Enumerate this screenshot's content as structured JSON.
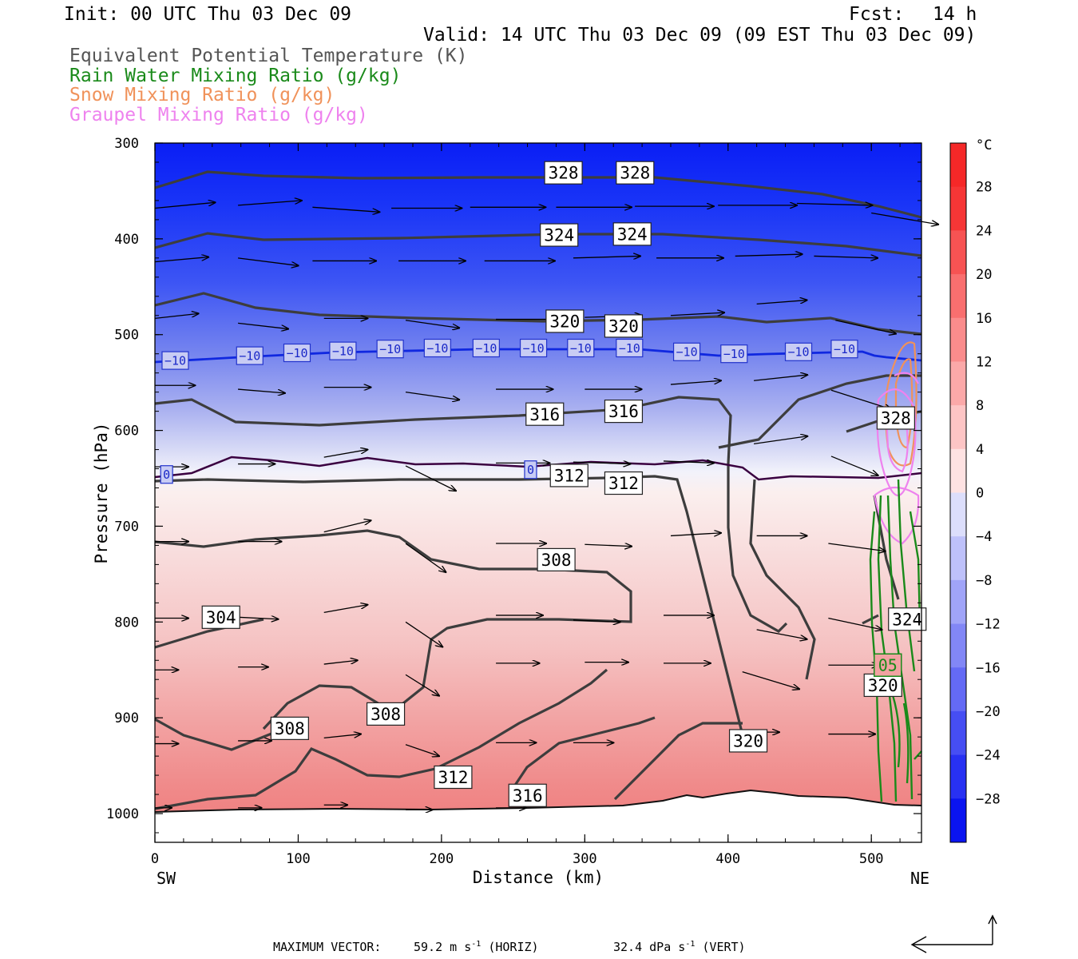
{
  "header": {
    "init": "Init: 00 UTC Thu 03 Dec 09",
    "fcst_label": "Fcst:",
    "fcst_value": "14 h",
    "valid": "Valid: 14 UTC Thu 03 Dec 09 (09 EST Thu 03 Dec 09)"
  },
  "legend": [
    {
      "label": "Equivalent Potential Temperature (K)",
      "color": "#555555"
    },
    {
      "label": "Rain Water Mixing Ratio (g/kg)",
      "color": "#1a8a1a"
    },
    {
      "label": "Snow Mixing Ratio (g/kg)",
      "color": "#f0925a"
    },
    {
      "label": "Graupel Mixing Ratio (g/kg)",
      "color": "#ee82ee"
    }
  ],
  "footer": {
    "max_vector_label": "MAXIMUM VECTOR:",
    "horiz_value": "59.2 m s",
    "horiz_unit": "(HORIZ)",
    "vert_value": "32.4 dPa s",
    "vert_unit": "(VERT)",
    "exponent": "-1"
  },
  "chart_data": {
    "type": "heatmap",
    "xlabel": "Distance (km)",
    "ylabel": "Pressure (hPa)",
    "xlim": [
      0,
      535
    ],
    "ylim": [
      1030,
      300
    ],
    "x_ticks": [
      "0",
      "100",
      "200",
      "300",
      "400",
      "500"
    ],
    "y_ticks": [
      "300",
      "400",
      "500",
      "600",
      "700",
      "800",
      "900",
      "1000"
    ],
    "x_left_label": "SW",
    "x_right_label": "NE",
    "colorbar": {
      "unit": "°C",
      "tick_labels": [
        "28",
        "24",
        "20",
        "16",
        "12",
        "8",
        "4",
        "0",
        "−4",
        "−8",
        "−12",
        "−16",
        "−20",
        "−24",
        "−28"
      ],
      "range": [
        -32,
        32
      ]
    },
    "temperature_contour_labels": [
      {
        "text": "−10",
        "x": 5,
        "p": 527
      },
      {
        "text": "−10",
        "x": 57,
        "p": 522
      },
      {
        "text": "−10",
        "x": 90,
        "p": 519
      },
      {
        "text": "−10",
        "x": 122,
        "p": 517
      },
      {
        "text": "−10",
        "x": 155,
        "p": 515
      },
      {
        "text": "−10",
        "x": 188,
        "p": 514
      },
      {
        "text": "−10",
        "x": 222,
        "p": 514
      },
      {
        "text": "−10",
        "x": 255,
        "p": 514
      },
      {
        "text": "−10",
        "x": 288,
        "p": 514
      },
      {
        "text": "−10",
        "x": 322,
        "p": 514
      },
      {
        "text": "−10",
        "x": 362,
        "p": 518
      },
      {
        "text": "−10",
        "x": 395,
        "p": 520
      },
      {
        "text": "−10",
        "x": 440,
        "p": 518
      },
      {
        "text": "−10",
        "x": 472,
        "p": 515
      },
      {
        "text": "0",
        "x": 4,
        "p": 646
      },
      {
        "text": "0",
        "x": 258,
        "p": 641
      }
    ],
    "theta_e_labels": [
      {
        "text": "328",
        "x": 272,
        "p": 331
      },
      {
        "text": "328",
        "x": 322,
        "p": 331
      },
      {
        "text": "324",
        "x": 269,
        "p": 396
      },
      {
        "text": "324",
        "x": 320,
        "p": 395
      },
      {
        "text": "320",
        "x": 273,
        "p": 486
      },
      {
        "text": "320",
        "x": 314,
        "p": 491
      },
      {
        "text": "316",
        "x": 259,
        "p": 583
      },
      {
        "text": "316",
        "x": 314,
        "p": 580
      },
      {
        "text": "312",
        "x": 276,
        "p": 647
      },
      {
        "text": "312",
        "x": 314,
        "p": 655
      },
      {
        "text": "308",
        "x": 267,
        "p": 735
      },
      {
        "text": "304",
        "x": 33,
        "p": 795
      },
      {
        "text": "308",
        "x": 81,
        "p": 911
      },
      {
        "text": "308",
        "x": 148,
        "p": 896
      },
      {
        "text": "312",
        "x": 195,
        "p": 962
      },
      {
        "text": "316",
        "x": 247,
        "p": 981
      },
      {
        "text": "320",
        "x": 401,
        "p": 924
      },
      {
        "text": "320",
        "x": 495,
        "p": 866
      },
      {
        "text": "324",
        "x": 512,
        "p": 797
      },
      {
        "text": "328",
        "x": 504,
        "p": 587
      }
    ],
    "rain_labels": [
      {
        "text": "05",
        "x": 502,
        "p": 845
      }
    ],
    "wind_vectors": [
      {
        "x": 0,
        "p": 368,
        "u": 36,
        "v": -6
      },
      {
        "x": 58,
        "p": 365,
        "u": 38,
        "v": -5
      },
      {
        "x": 110,
        "p": 367,
        "u": 40,
        "v": 5
      },
      {
        "x": 165,
        "p": 368,
        "u": 42,
        "v": 0
      },
      {
        "x": 220,
        "p": 367,
        "u": 45,
        "v": 0
      },
      {
        "x": 280,
        "p": 367,
        "u": 45,
        "v": 0
      },
      {
        "x": 335,
        "p": 366,
        "u": 47,
        "v": 0
      },
      {
        "x": 393,
        "p": 365,
        "u": 47,
        "v": 0
      },
      {
        "x": 448,
        "p": 363,
        "u": 45,
        "v": 2
      },
      {
        "x": 500,
        "p": 373,
        "u": 40,
        "v": 12
      },
      {
        "x": 0,
        "p": 424,
        "u": 32,
        "v": -5
      },
      {
        "x": 58,
        "p": 420,
        "u": 36,
        "v": 8
      },
      {
        "x": 110,
        "p": 423,
        "u": 38,
        "v": 0
      },
      {
        "x": 170,
        "p": 423,
        "u": 40,
        "v": 0
      },
      {
        "x": 230,
        "p": 423,
        "u": 42,
        "v": 0
      },
      {
        "x": 292,
        "p": 420,
        "u": 40,
        "v": -2
      },
      {
        "x": 350,
        "p": 420,
        "u": 40,
        "v": 0
      },
      {
        "x": 405,
        "p": 418,
        "u": 40,
        "v": -2
      },
      {
        "x": 460,
        "p": 418,
        "u": 38,
        "v": 2
      },
      {
        "x": 0,
        "p": 483,
        "u": 26,
        "v": -5
      },
      {
        "x": 58,
        "p": 488,
        "u": 30,
        "v": 6
      },
      {
        "x": 118,
        "p": 483,
        "u": 26,
        "v": 0
      },
      {
        "x": 175,
        "p": 485,
        "u": 32,
        "v": 8
      },
      {
        "x": 238,
        "p": 484,
        "u": 34,
        "v": 0
      },
      {
        "x": 300,
        "p": 482,
        "u": 34,
        "v": -2
      },
      {
        "x": 360,
        "p": 480,
        "u": 32,
        "v": -3
      },
      {
        "x": 420,
        "p": 468,
        "u": 30,
        "v": -4
      },
      {
        "x": 475,
        "p": 485,
        "u": 36,
        "v": 14
      },
      {
        "x": 0,
        "p": 553,
        "u": 24,
        "v": 0
      },
      {
        "x": 58,
        "p": 557,
        "u": 28,
        "v": 4
      },
      {
        "x": 118,
        "p": 555,
        "u": 28,
        "v": 0
      },
      {
        "x": 175,
        "p": 560,
        "u": 32,
        "v": 8
      },
      {
        "x": 238,
        "p": 557,
        "u": 34,
        "v": 0
      },
      {
        "x": 300,
        "p": 557,
        "u": 34,
        "v": 0
      },
      {
        "x": 360,
        "p": 552,
        "u": 30,
        "v": -4
      },
      {
        "x": 418,
        "p": 548,
        "u": 32,
        "v": -6
      },
      {
        "x": 472,
        "p": 558,
        "u": 36,
        "v": 20
      },
      {
        "x": 0,
        "p": 638,
        "u": 20,
        "v": 0
      },
      {
        "x": 58,
        "p": 635,
        "u": 22,
        "v": 0
      },
      {
        "x": 118,
        "p": 628,
        "u": 26,
        "v": -8
      },
      {
        "x": 175,
        "p": 637,
        "u": 30,
        "v": 26
      },
      {
        "x": 238,
        "p": 634,
        "u": 32,
        "v": 0
      },
      {
        "x": 292,
        "p": 633,
        "u": 34,
        "v": 2
      },
      {
        "x": 355,
        "p": 632,
        "u": 30,
        "v": 2
      },
      {
        "x": 418,
        "p": 614,
        "u": 32,
        "v": -8
      },
      {
        "x": 472,
        "p": 627,
        "u": 28,
        "v": 20
      },
      {
        "x": 0,
        "p": 716,
        "u": 20,
        "v": 0
      },
      {
        "x": 58,
        "p": 716,
        "u": 26,
        "v": 0
      },
      {
        "x": 118,
        "p": 706,
        "u": 28,
        "v": -12
      },
      {
        "x": 175,
        "p": 718,
        "u": 24,
        "v": 30
      },
      {
        "x": 238,
        "p": 718,
        "u": 30,
        "v": 0
      },
      {
        "x": 300,
        "p": 719,
        "u": 28,
        "v": 2
      },
      {
        "x": 360,
        "p": 710,
        "u": 30,
        "v": -3
      },
      {
        "x": 420,
        "p": 710,
        "u": 30,
        "v": 0
      },
      {
        "x": 470,
        "p": 718,
        "u": 34,
        "v": 8
      },
      {
        "x": 0,
        "p": 796,
        "u": 20,
        "v": 0
      },
      {
        "x": 58,
        "p": 795,
        "u": 24,
        "v": 2
      },
      {
        "x": 118,
        "p": 790,
        "u": 26,
        "v": -8
      },
      {
        "x": 175,
        "p": 800,
        "u": 22,
        "v": 26
      },
      {
        "x": 238,
        "p": 793,
        "u": 28,
        "v": 0
      },
      {
        "x": 292,
        "p": 798,
        "u": 28,
        "v": 2
      },
      {
        "x": 355,
        "p": 793,
        "u": 30,
        "v": 0
      },
      {
        "x": 420,
        "p": 808,
        "u": 30,
        "v": 10
      },
      {
        "x": 470,
        "p": 796,
        "u": 32,
        "v": 12
      },
      {
        "x": 0,
        "p": 850,
        "u": 14,
        "v": 0
      },
      {
        "x": 58,
        "p": 847,
        "u": 18,
        "v": 0
      },
      {
        "x": 118,
        "p": 844,
        "u": 20,
        "v": -4
      },
      {
        "x": 175,
        "p": 855,
        "u": 20,
        "v": 22
      },
      {
        "x": 238,
        "p": 843,
        "u": 26,
        "v": 0
      },
      {
        "x": 300,
        "p": 842,
        "u": 26,
        "v": 0
      },
      {
        "x": 355,
        "p": 843,
        "u": 28,
        "v": 0
      },
      {
        "x": 410,
        "p": 852,
        "u": 34,
        "v": 18
      },
      {
        "x": 470,
        "p": 845,
        "u": 30,
        "v": 0
      },
      {
        "x": 0,
        "p": 927,
        "u": 14,
        "v": 0
      },
      {
        "x": 58,
        "p": 924,
        "u": 20,
        "v": 0
      },
      {
        "x": 118,
        "p": 921,
        "u": 22,
        "v": -4
      },
      {
        "x": 175,
        "p": 928,
        "u": 20,
        "v": 12
      },
      {
        "x": 238,
        "p": 926,
        "u": 24,
        "v": 0
      },
      {
        "x": 292,
        "p": 926,
        "u": 24,
        "v": 0
      },
      {
        "x": 410,
        "p": 915,
        "u": 22,
        "v": 0
      },
      {
        "x": 470,
        "p": 917,
        "u": 28,
        "v": 0
      },
      {
        "x": 0,
        "p": 994,
        "u": 10,
        "v": 0
      },
      {
        "x": 58,
        "p": 994,
        "u": 14,
        "v": 0
      },
      {
        "x": 118,
        "p": 991,
        "u": 14,
        "v": 0
      },
      {
        "x": 175,
        "p": 996,
        "u": 16,
        "v": 0
      },
      {
        "x": 238,
        "p": 994,
        "u": 18,
        "v": 0
      }
    ],
    "grid": false
  }
}
